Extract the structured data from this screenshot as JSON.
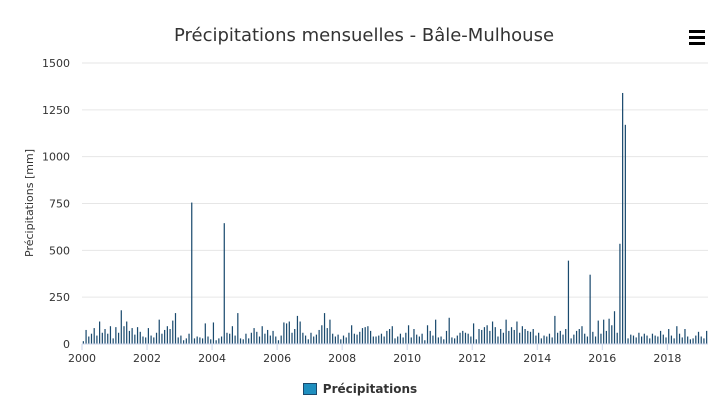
{
  "chart_data": {
    "type": "bar",
    "title": "Précipitations mensuelles - Bâle-Mulhouse",
    "ylabel": "Précipitations [mm]",
    "xlabel": "",
    "ylim": [
      0,
      1500
    ],
    "yticks": [
      0,
      250,
      500,
      750,
      1000,
      1250,
      1500
    ],
    "xlim": [
      "2000-01",
      "2019-04"
    ],
    "xticks": [
      "2000",
      "2002",
      "2004",
      "2006",
      "2008",
      "2010",
      "2012",
      "2014",
      "2016",
      "2018"
    ],
    "grid": "horizontal",
    "legend": "bottom-center",
    "colors": {
      "bar": "#1f8fbf",
      "bar_outline": "#1a4a6e",
      "grid": "#e6e6e6",
      "axis": "#ccd6eb"
    },
    "series": [
      {
        "name": "Précipitations",
        "start": "2000-01",
        "frequency": "monthly",
        "values": [
          15,
          75,
          40,
          55,
          85,
          45,
          120,
          60,
          80,
          55,
          95,
          30,
          90,
          60,
          180,
          95,
          120,
          70,
          85,
          50,
          90,
          65,
          40,
          35,
          85,
          45,
          35,
          60,
          130,
          55,
          75,
          95,
          80,
          125,
          165,
          35,
          45,
          20,
          30,
          55,
          755,
          30,
          40,
          35,
          30,
          110,
          40,
          25,
          115,
          20,
          30,
          40,
          645,
          60,
          55,
          95,
          45,
          165,
          30,
          25,
          55,
          30,
          60,
          85,
          65,
          40,
          95,
          55,
          75,
          45,
          70,
          40,
          20,
          45,
          115,
          110,
          120,
          60,
          80,
          150,
          120,
          60,
          45,
          25,
          60,
          40,
          50,
          75,
          100,
          165,
          85,
          130,
          55,
          40,
          50,
          25,
          45,
          35,
          60,
          100,
          55,
          50,
          65,
          85,
          90,
          95,
          70,
          40,
          40,
          45,
          55,
          40,
          70,
          80,
          95,
          30,
          40,
          55,
          35,
          60,
          100,
          35,
          80,
          50,
          40,
          55,
          20,
          100,
          70,
          45,
          130,
          35,
          40,
          25,
          70,
          140,
          35,
          30,
          45,
          60,
          70,
          60,
          55,
          40,
          110,
          25,
          80,
          75,
          90,
          100,
          70,
          120,
          90,
          40,
          80,
          60,
          130,
          70,
          90,
          75,
          120,
          60,
          95,
          80,
          70,
          65,
          80,
          45,
          60,
          30,
          45,
          40,
          55,
          35,
          150,
          60,
          70,
          50,
          80,
          445,
          30,
          50,
          70,
          80,
          95,
          55,
          40,
          370,
          65,
          40,
          125,
          55,
          130,
          70,
          135,
          100,
          175,
          60,
          535,
          1340,
          1170,
          30,
          50,
          45,
          35,
          60,
          40,
          55,
          45,
          30,
          55,
          45,
          40,
          70,
          50,
          35,
          80,
          45,
          30,
          95,
          55,
          35,
          80,
          40,
          25,
          30,
          45,
          65,
          40,
          30,
          70
        ]
      }
    ]
  }
}
